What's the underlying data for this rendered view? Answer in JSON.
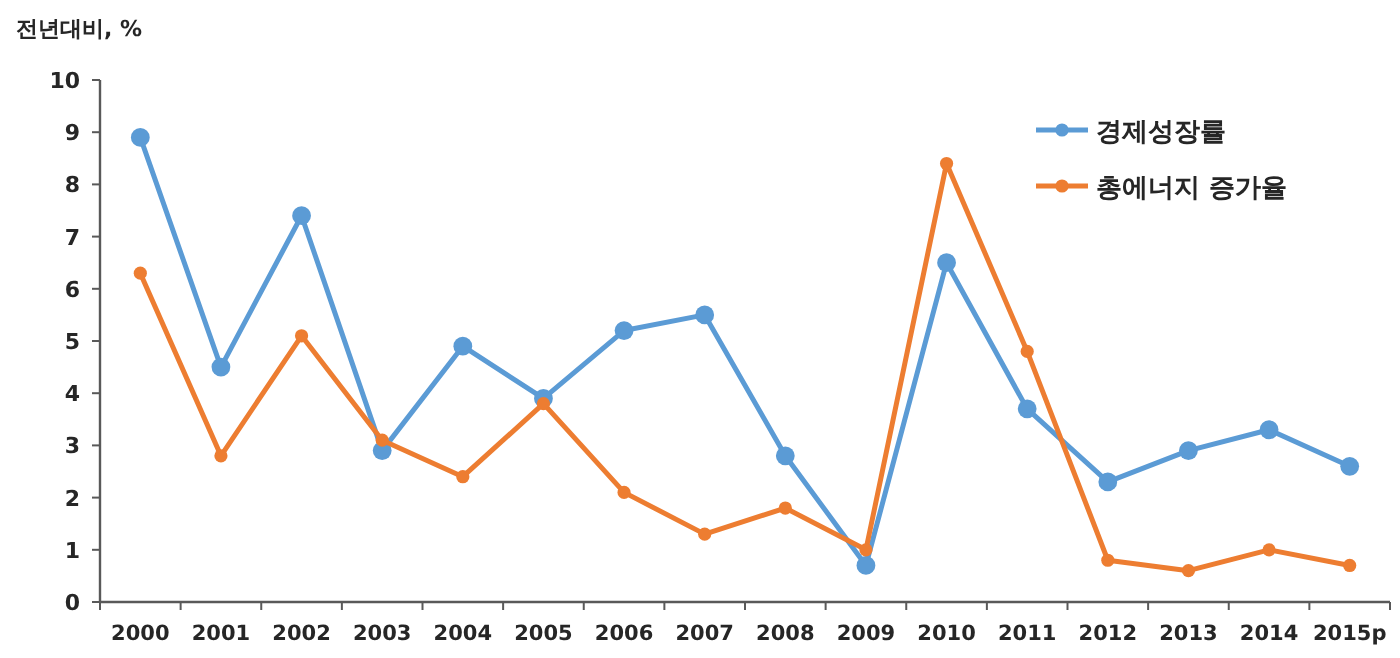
{
  "chart_data": {
    "type": "line",
    "ylabel": "전년대비, %",
    "categories": [
      "2000",
      "2001",
      "2002",
      "2003",
      "2004",
      "2005",
      "2006",
      "2007",
      "2008",
      "2009",
      "2010",
      "2011",
      "2012",
      "2013",
      "2014",
      "2015p"
    ],
    "series": [
      {
        "name": "경제성장률",
        "color": "#5b9bd5",
        "values": [
          8.9,
          4.5,
          7.4,
          2.9,
          4.9,
          3.9,
          5.2,
          5.5,
          2.8,
          0.7,
          6.5,
          3.7,
          2.3,
          2.9,
          3.3,
          2.6
        ]
      },
      {
        "name": "총에너지 증가율",
        "color": "#ed7d31",
        "values": [
          6.3,
          2.8,
          5.1,
          3.1,
          2.4,
          3.8,
          2.1,
          1.3,
          1.8,
          1.0,
          8.4,
          4.8,
          0.8,
          0.6,
          1.0,
          0.7
        ]
      }
    ],
    "ylim": [
      0,
      10
    ],
    "yticks": [
      0,
      1,
      2,
      3,
      4,
      5,
      6,
      7,
      8,
      9,
      10
    ],
    "grid": false,
    "legend": "top right",
    "marker": "circle",
    "line_style": "solid"
  }
}
